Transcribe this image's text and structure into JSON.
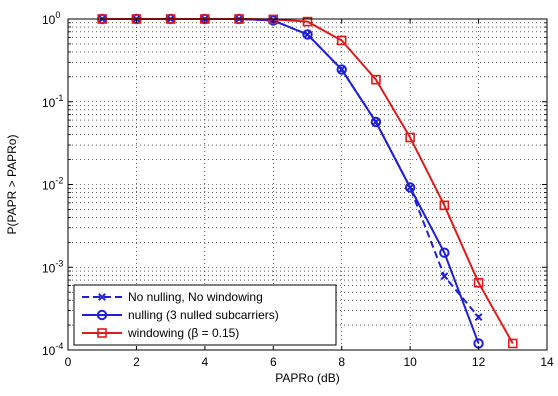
{
  "chart_data": {
    "type": "line",
    "xlabel": "PAPRo (dB)",
    "ylabel": "P(PAPR > PAPRo)",
    "xlim": [
      0,
      14
    ],
    "ylim": [
      0.0001,
      1
    ],
    "y_scale": "log",
    "x_ticks": [
      0,
      2,
      4,
      6,
      8,
      10,
      12,
      14
    ],
    "x_tick_labels": [
      "0",
      "2",
      "4",
      "6",
      "8",
      "10",
      "12",
      "14"
    ],
    "y_ticks": [
      0.0001,
      0.001,
      0.01,
      0.1,
      1
    ],
    "y_tick_labels": [
      {
        "base": "10",
        "exp": "-4"
      },
      {
        "base": "10",
        "exp": "-3"
      },
      {
        "base": "10",
        "exp": "-2"
      },
      {
        "base": "10",
        "exp": "-1"
      },
      {
        "base": "10",
        "exp": "0"
      }
    ],
    "grid": true,
    "legend_position": "bottom-left",
    "series": [
      {
        "name": "No nulling, No windowing",
        "color": "#1f1fd6",
        "line_style": "dashed",
        "marker": "x",
        "x": [
          1,
          2,
          3,
          4,
          5,
          6,
          7,
          8,
          9,
          10,
          11,
          12
        ],
        "y": [
          1,
          1,
          1,
          1,
          1,
          0.96,
          0.65,
          0.245,
          0.057,
          0.0092,
          0.00078,
          0.00025
        ]
      },
      {
        "name": "nulling (3 nulled subcarriers)",
        "color": "#1f1fd6",
        "line_style": "solid",
        "marker": "circle",
        "x": [
          1,
          2,
          3,
          4,
          5,
          6,
          7,
          8,
          9,
          10,
          11,
          12
        ],
        "y": [
          1,
          1,
          1,
          1,
          1,
          0.96,
          0.65,
          0.245,
          0.057,
          0.0092,
          0.0015,
          0.00012
        ]
      },
      {
        "name": "windowing (β = 0.15)",
        "color": "#e01a1a",
        "line_style": "solid",
        "marker": "square",
        "x": [
          1,
          2,
          3,
          4,
          5,
          6,
          7,
          8,
          9,
          10,
          11,
          12,
          13
        ],
        "y": [
          1,
          1,
          1,
          1,
          1,
          0.99,
          0.93,
          0.55,
          0.185,
          0.037,
          0.0056,
          0.00065,
          0.00012
        ]
      }
    ]
  }
}
